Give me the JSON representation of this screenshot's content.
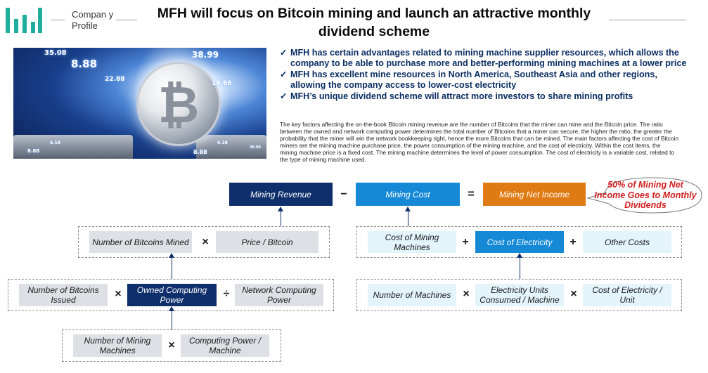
{
  "header": {
    "company_label": "Compan y Profile",
    "title": "MFH will focus on Bitcoin mining and launch an attractive monthly dividend scheme"
  },
  "hero": {
    "numbers": [
      "35.08",
      "8.88",
      "38.99",
      "19.66",
      "22.88",
      "6.18",
      "8.88",
      "8.88",
      "6.18",
      "38.99"
    ]
  },
  "bullets": [
    "MFH has certain advantages related to mining machine supplier resources, which allows the company to be able to purchase more and better-performing mining machines at a lower price",
    "MFH has excellent mine resources in North America, Southeast Asia and other regions, allowing the company access to lower-cost electricity",
    "MFH’s unique dividend scheme will attract more investors to share mining profits"
  ],
  "bullet_mark": "✓",
  "paragraph": "The key factors affecting the on-the-book Bitcoin mining revenue are the number of Bitcoins that the miner can mine and the Bitcoin price. The ratio between the owned and network computing power determines the total number of Bitcoins that a miner can secure, the higher the ratio, the greater the probability that the miner will win the network bookkeeping right, hence the more Bitcoins that can be mined. The main factors affecting the cost of Bitcoin miners are the mining machine purchase price, the power consumption of the mining machine, and the cost of electricity. Within the cost items, the mining machine price is a fixed cost. The mining machine determines the level of power consumption. The cost of electricity is a variable cost, related to the type of mining machine used.",
  "diagram": {
    "mining_revenue": "Mining Revenue",
    "mining_cost": "Mining Cost",
    "mining_net_income": "Mining Net Income",
    "callout": "50% of Mining Net Income Goes to Monthly Dividends",
    "bitcoins_mined": "Number of Bitcoins Mined",
    "price_per_bitcoin": "Price / Bitcoin",
    "bitcoins_issued": "Number of Bitcoins Issued",
    "owned_computing_power": "Owned Computing Power",
    "network_computing_power": "Network Computing Power",
    "number_of_mining_machines": "Number of Mining Machines",
    "computing_power_per_machine": "Computing Power / Machine",
    "cost_of_mining_machines": "Cost of Mining Machines",
    "cost_of_electricity": "Cost of Electricity",
    "other_costs": "Other Costs",
    "number_of_machines": "Number of Machines",
    "electricity_units_per_machine": "Electricity Units Consumed / Machine",
    "cost_of_electricity_per_unit": "Cost of Electricity / Unit",
    "ops": {
      "minus": "−",
      "equals": "=",
      "times": "×",
      "divide": "÷",
      "plus": "+"
    }
  },
  "colors": {
    "navy": "#0e2f6b",
    "blue": "#1589d6",
    "orange": "#e07a12",
    "teal_logo": "#1fae9e",
    "callout_red": "#d01f1f"
  }
}
